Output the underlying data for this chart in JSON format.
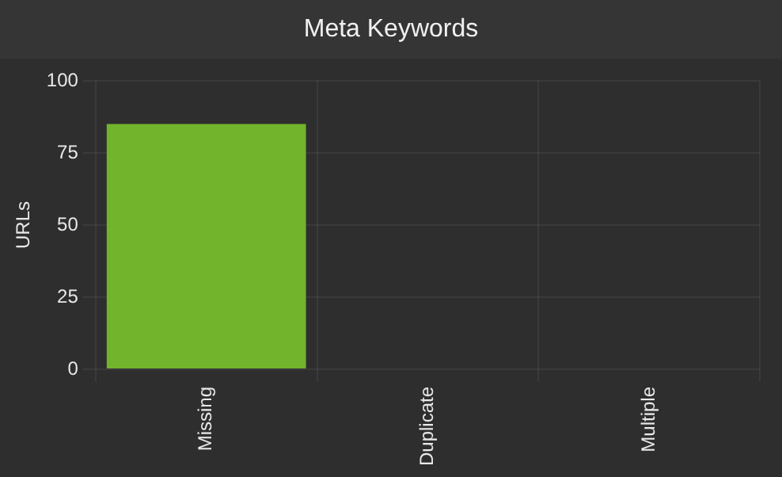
{
  "chart_data": {
    "type": "bar",
    "title": "Meta Keywords",
    "ylabel": "URLs",
    "categories": [
      "Missing",
      "Duplicate",
      "Multiple"
    ],
    "values": [
      85,
      0,
      0
    ],
    "color": "#72b42c",
    "ylim": [
      0,
      100
    ],
    "yticks": [
      0,
      25,
      50,
      75,
      100
    ],
    "grid": true
  }
}
